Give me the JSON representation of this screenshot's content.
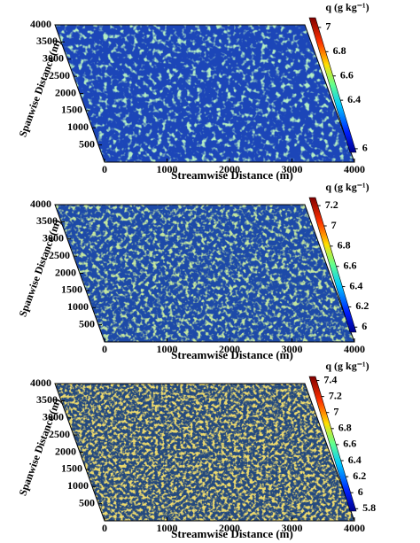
{
  "chart_data": [
    {
      "type": "heatmap",
      "xlabel": "Streamwise Distance (m)",
      "ylabel": "Spanwise Distance (m)",
      "colorbar_label": "q (g kg⁻¹)",
      "xlim": [
        0,
        4000
      ],
      "ylim": [
        0,
        4000
      ],
      "xticks": [
        0,
        1000,
        2000,
        3000,
        4000
      ],
      "yticks": [
        500,
        1000,
        1500,
        2000,
        2500,
        3000,
        3500,
        4000
      ],
      "clim": [
        5.97,
        7.08
      ],
      "cticks": [
        6,
        6.4,
        6.6,
        6.8,
        7
      ]
    },
    {
      "type": "heatmap",
      "xlabel": "Streamwise Distance (m)",
      "ylabel": "Spanwise Distance (m)",
      "colorbar_label": "q (g kg⁻¹)",
      "xlim": [
        0,
        4000
      ],
      "ylim": [
        0,
        4000
      ],
      "xticks": [
        0,
        1000,
        2000,
        3000,
        4000
      ],
      "yticks": [
        500,
        1000,
        1500,
        2000,
        2500,
        3000,
        3500,
        4000
      ],
      "clim": [
        5.95,
        7.28
      ],
      "cticks": [
        6,
        6.2,
        6.4,
        6.6,
        6.8,
        7,
        7.2
      ]
    },
    {
      "type": "heatmap",
      "xlabel": "Streamwise Distance (m)",
      "ylabel": "Spanwise Distance (m)",
      "colorbar_label": "q (g kg⁻¹)",
      "xlim": [
        0,
        4000
      ],
      "ylim": [
        0,
        4000
      ],
      "xticks": [
        0,
        1000,
        2000,
        3000,
        4000
      ],
      "yticks": [
        500,
        1000,
        1500,
        2000,
        2500,
        3000,
        3500,
        4000
      ],
      "clim": [
        5.77,
        7.45
      ],
      "cticks": [
        5.8,
        6,
        6.2,
        6.4,
        6.6,
        6.8,
        7,
        7.2,
        7.4
      ]
    }
  ]
}
